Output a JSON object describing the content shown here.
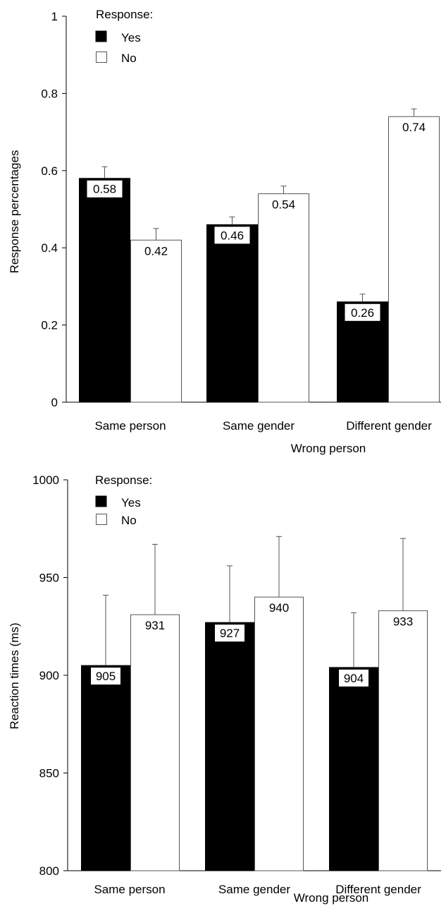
{
  "chart_data": [
    {
      "type": "bar",
      "ylabel": "Response percentages",
      "xlabel": "Wrong person",
      "categories": [
        "Same person",
        "Same gender",
        "Different gender"
      ],
      "ylim": [
        0,
        1
      ],
      "yticks": [
        0,
        0.2,
        0.4,
        0.6,
        0.8,
        1
      ],
      "ytick_labels": [
        "0",
        "0.2",
        "0.4",
        "0.6",
        "0.8",
        "1"
      ],
      "legend": {
        "title": "Response:",
        "placement": "top-left"
      },
      "series": [
        {
          "name": "Yes",
          "color": "#000000",
          "values": [
            0.58,
            0.46,
            0.26
          ],
          "errors": [
            0.03,
            0.02,
            0.02
          ],
          "labels": [
            "0.58",
            "0.46",
            "0.26"
          ]
        },
        {
          "name": "No",
          "color": "#ffffff",
          "values": [
            0.42,
            0.54,
            0.74
          ],
          "errors": [
            0.03,
            0.02,
            0.02
          ],
          "labels": [
            "0.42",
            "0.54",
            "0.74"
          ]
        }
      ]
    },
    {
      "type": "bar",
      "ylabel": "Reaction times (ms)",
      "xlabel": "Wrong person",
      "categories": [
        "Same person",
        "Same gender",
        "Different gender"
      ],
      "ylim": [
        800,
        1000
      ],
      "yticks": [
        800,
        850,
        900,
        950,
        1000
      ],
      "ytick_labels": [
        "800",
        "850",
        "900",
        "950",
        "1000"
      ],
      "legend": {
        "title": "Response:",
        "placement": "top-left"
      },
      "series": [
        {
          "name": "Yes",
          "color": "#000000",
          "values": [
            905,
            927,
            904
          ],
          "errors": [
            36,
            29,
            28
          ],
          "labels": [
            "905",
            "927",
            "904"
          ]
        },
        {
          "name": "No",
          "color": "#ffffff",
          "values": [
            931,
            940,
            933
          ],
          "errors": [
            36,
            31,
            37
          ],
          "labels": [
            "931",
            "940",
            "933"
          ]
        }
      ]
    }
  ]
}
